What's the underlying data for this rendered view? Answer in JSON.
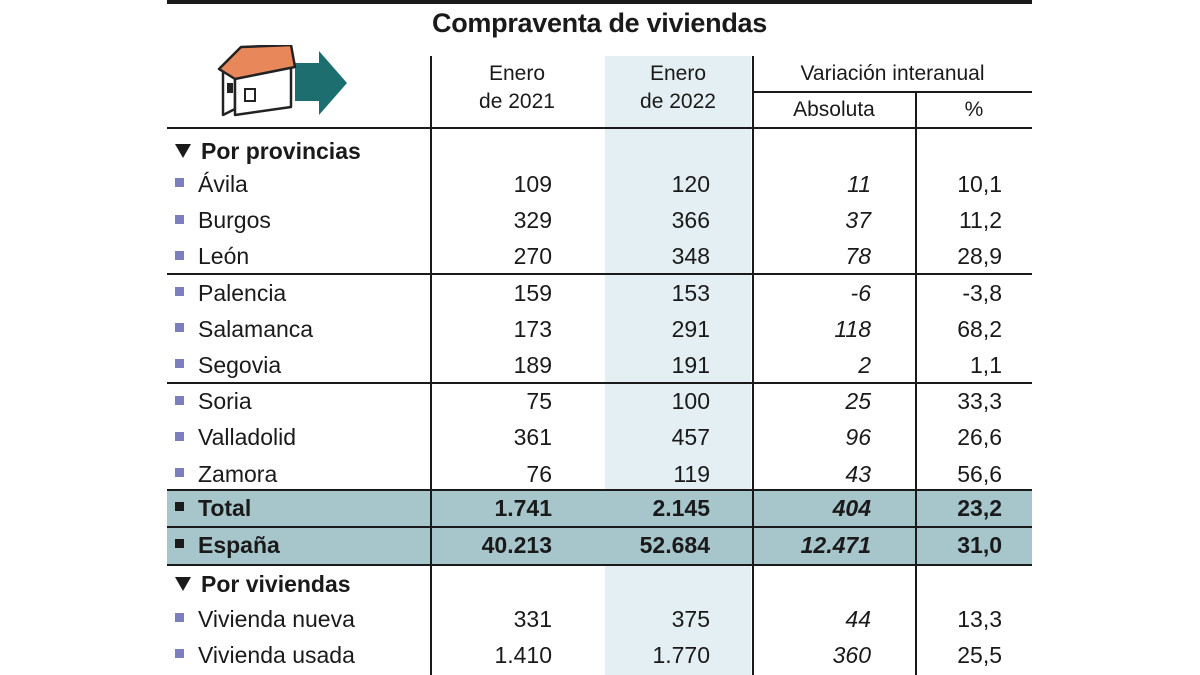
{
  "title": "Compraventa de viviendas",
  "columns": {
    "col1": [
      "Enero",
      "de 2021"
    ],
    "col2": [
      "Enero",
      "de 2022"
    ],
    "variation": "Variación interanual",
    "absolute": "Absoluta",
    "percent": "%"
  },
  "section_provincias": "Por provincias",
  "section_viviendas": "Por viviendas",
  "chart_data": {
    "type": "table",
    "title": "Compraventa de viviendas",
    "columns": [
      "Enero de 2021",
      "Enero de 2022",
      "Variación interanual Absoluta",
      "Variación interanual %"
    ],
    "provincias": [
      {
        "name": "Ávila",
        "v2021": "109",
        "v2022": "120",
        "abs": "11",
        "pct": "10,1"
      },
      {
        "name": "Burgos",
        "v2021": "329",
        "v2022": "366",
        "abs": "37",
        "pct": "11,2"
      },
      {
        "name": "León",
        "v2021": "270",
        "v2022": "348",
        "abs": "78",
        "pct": "28,9"
      },
      {
        "name": "Palencia",
        "v2021": "159",
        "v2022": "153",
        "abs": "-6",
        "pct": "-3,8"
      },
      {
        "name": "Salamanca",
        "v2021": "173",
        "v2022": "291",
        "abs": "118",
        "pct": "68,2"
      },
      {
        "name": "Segovia",
        "v2021": "189",
        "v2022": "191",
        "abs": "2",
        "pct": "1,1"
      },
      {
        "name": "Soria",
        "v2021": "75",
        "v2022": "100",
        "abs": "25",
        "pct": "33,3"
      },
      {
        "name": "Valladolid",
        "v2021": "361",
        "v2022": "457",
        "abs": "96",
        "pct": "26,6"
      },
      {
        "name": "Zamora",
        "v2021": "76",
        "v2022": "119",
        "abs": "43",
        "pct": "56,6"
      }
    ],
    "totals": [
      {
        "name": "Total",
        "v2021": "1.741",
        "v2022": "2.145",
        "abs": "404",
        "pct": "23,2"
      },
      {
        "name": "España",
        "v2021": "40.213",
        "v2022": "52.684",
        "abs": "12.471",
        "pct": "31,0"
      }
    ],
    "viviendas": [
      {
        "name": "Vivienda nueva",
        "v2021": "331",
        "v2022": "375",
        "abs": "44",
        "pct": "13,3"
      },
      {
        "name": "Vivienda usada",
        "v2021": "1.410",
        "v2022": "1.770",
        "abs": "360",
        "pct": "25,5"
      }
    ]
  },
  "colors": {
    "shade_column": "#e3eff2",
    "total_band": "#a7c6cc",
    "bullet": "#7b7fbf",
    "house_arrow": "#1d6f6f",
    "house_roof": "#e8875a"
  },
  "icons": [
    "house-icon",
    "arrow-right-icon"
  ]
}
